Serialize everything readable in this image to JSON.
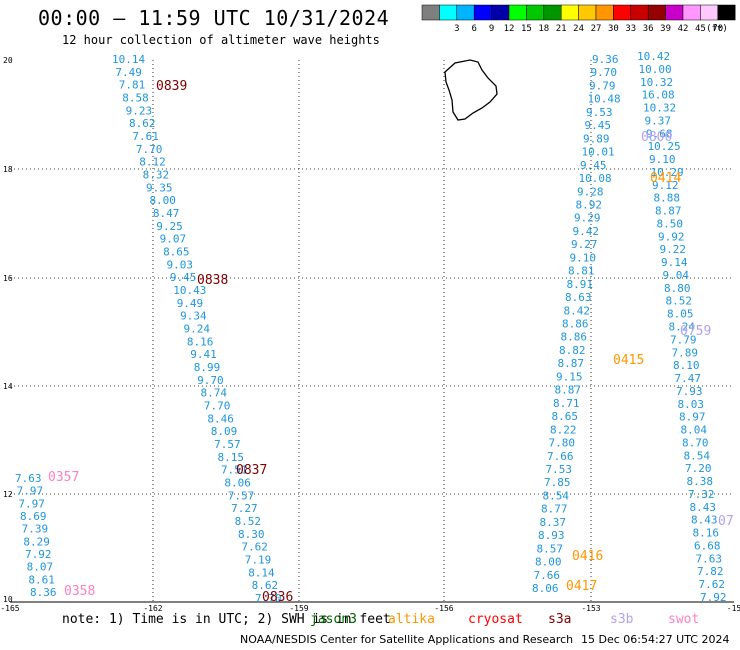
{
  "header": {
    "title": "00:00 – 11:59 UTC 10/31/2024",
    "subtitle": "12 hour collection of altimeter wave heights"
  },
  "legend": {
    "unit": "(ft)",
    "bins": [
      {
        "color": "#7f7f7f",
        "label": ""
      },
      {
        "color": "#00ffff",
        "label": "3"
      },
      {
        "color": "#00b4ff",
        "label": "6"
      },
      {
        "color": "#0000ff",
        "label": "9"
      },
      {
        "color": "#0000aa",
        "label": "12"
      },
      {
        "color": "#00ff00",
        "label": "15"
      },
      {
        "color": "#00c800",
        "label": "18"
      },
      {
        "color": "#009600",
        "label": "21"
      },
      {
        "color": "#ffff00",
        "label": "24"
      },
      {
        "color": "#ffc800",
        "label": "27"
      },
      {
        "color": "#ff9600",
        "label": "30"
      },
      {
        "color": "#ff0000",
        "label": "33"
      },
      {
        "color": "#c80000",
        "label": "36"
      },
      {
        "color": "#960000",
        "label": "39"
      },
      {
        "color": "#c800c8",
        "label": "42"
      },
      {
        "color": "#ff96ff",
        "label": "45"
      },
      {
        "color": "#ffc8ff",
        "label": "70"
      },
      {
        "color": "#000000",
        "label": ""
      }
    ]
  },
  "axes": {
    "x_ticks": [
      "-165",
      "-162",
      "-159",
      "-156",
      "-153",
      "-15"
    ],
    "y_ticks": [
      "20",
      "18",
      "16",
      "14",
      "12",
      "10"
    ]
  },
  "tracks": [
    {
      "color": "#1e96dc",
      "values": [
        "10.14",
        "7.49",
        "7.81",
        "8.58",
        "9.23",
        "8.62",
        "7.61",
        "7.70",
        "8.12",
        "8.32",
        "9.35",
        "8.00",
        "8.47",
        "9.25",
        "9.07",
        "8.65",
        "9.03",
        "9.45",
        "10.43",
        "9.49",
        "9.34",
        "9.24",
        "8.16",
        "9.41",
        "8.99",
        "9.70",
        "8.74",
        "7.70",
        "8.46",
        "8.09",
        "7.57",
        "8.15",
        "7.51",
        "8.06",
        "7.57",
        "7.27",
        "8.52",
        "8.30",
        "7.62",
        "7.19",
        "8.14",
        "8.62",
        "7.70"
      ]
    },
    {
      "color": "#1e96dc",
      "values": [
        "7.63",
        "7.97",
        "7.97",
        "8.69",
        "7.39",
        "8.29",
        "7.92",
        "8.07",
        "8.61",
        "8.36"
      ]
    },
    {
      "color": "#1e96dc",
      "values": [
        "9.36",
        "9.70",
        "9.79",
        "10.48",
        "9.53",
        "9.45",
        "9.89",
        "10.01",
        "9.45",
        "10.08",
        "9.28",
        "8.92",
        "9.29",
        "9.42",
        "9.27",
        "9.10",
        "8.81",
        "8.91",
        "8.63",
        "8.42",
        "8.86",
        "8.86",
        "8.82",
        "8.87",
        "9.15",
        "8.87",
        "8.71",
        "8.65",
        "8.22",
        "7.80",
        "7.66",
        "7.53",
        "7.85",
        "8.54",
        "8.77",
        "8.37",
        "8.93",
        "8.57",
        "8.00",
        "7.66",
        "8.06"
      ]
    },
    {
      "color": "#1e96dc",
      "values": [
        "10.42",
        "10.00",
        "10.32",
        "16.08",
        "10.32",
        "9.37",
        "9.68",
        "10.25",
        "9.10",
        "10.29",
        "9.12",
        "8.88",
        "8.87",
        "8.50",
        "9.92",
        "9.22",
        "9.14",
        "9.04",
        "8.80",
        "8.52",
        "8.05",
        "8.24",
        "7.79",
        "7.89",
        "8.10",
        "7.47",
        "7.93",
        "8.03",
        "8.97",
        "8.04",
        "8.70",
        "8.54",
        "7.20",
        "8.38",
        "7.32",
        "8.43",
        "8.43",
        "8.16",
        "6.68",
        "7.63",
        "7.82",
        "7.62",
        "7.92"
      ]
    }
  ],
  "passes": [
    {
      "label": "0839",
      "color": "#800000"
    },
    {
      "label": "0838",
      "color": "#800000"
    },
    {
      "label": "0837",
      "color": "#800000"
    },
    {
      "label": "0836",
      "color": "#800000"
    },
    {
      "label": "0357",
      "color": "#ff80c0"
    },
    {
      "label": "0358",
      "color": "#ff80c0"
    },
    {
      "label": "0800",
      "color": "#b4a0f0"
    },
    {
      "label": "0414",
      "color": "#ff9600"
    },
    {
      "label": "0759",
      "color": "#b4a0f0"
    },
    {
      "label": "0415",
      "color": "#ff9600"
    },
    {
      "label": "0416",
      "color": "#ff9600"
    },
    {
      "label": "0417",
      "color": "#ff9600"
    },
    {
      "label": "07",
      "color": "#b4a0f0"
    }
  ],
  "note": "note: 1) Time is in UTC; 2) SWH is in feet",
  "satellites": [
    {
      "label": "jason3",
      "color": "#006400"
    },
    {
      "label": "altika",
      "color": "#ff9600"
    },
    {
      "label": "cryosat",
      "color": "#ff0000"
    },
    {
      "label": "s3a",
      "color": "#800000"
    },
    {
      "label": "s3b",
      "color": "#b4a0f0"
    },
    {
      "label": "swot",
      "color": "#ff80c0"
    }
  ],
  "footer": {
    "left": "NOAA/NESDIS Center for Satellite Applications and Research",
    "right": "15 Dec 06:54:27 UTC 2024"
  }
}
